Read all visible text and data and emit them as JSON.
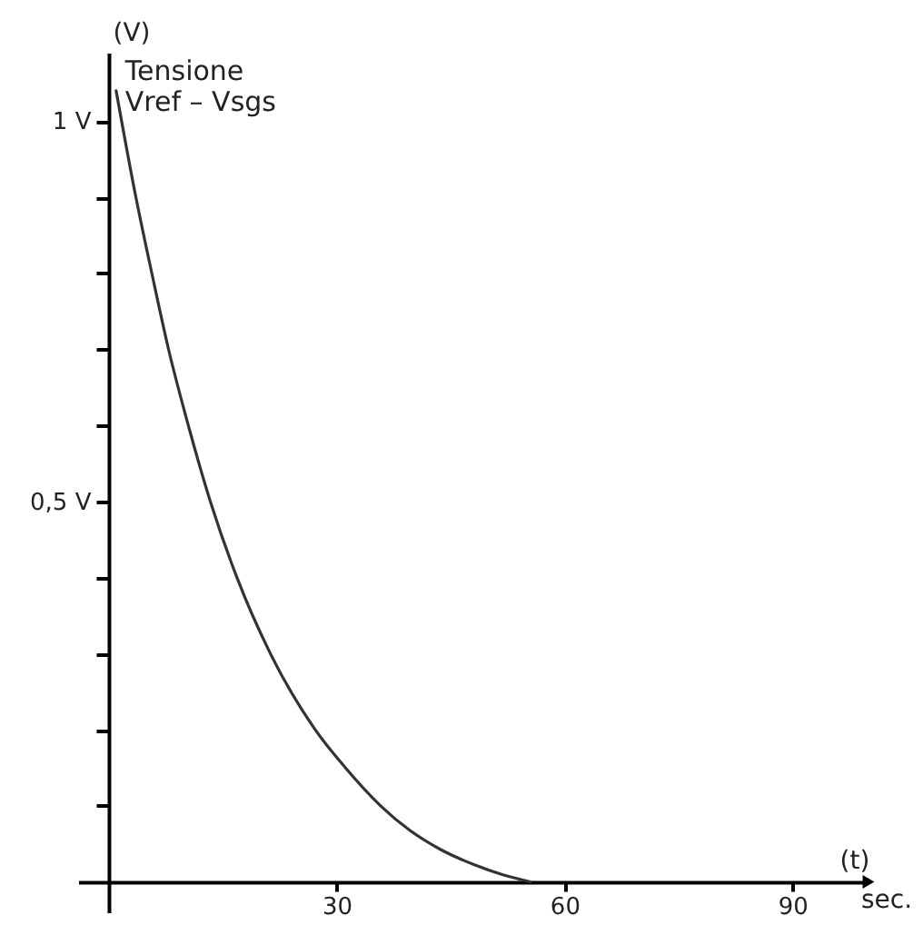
{
  "chart_data": {
    "type": "line",
    "xlabel": "(t)",
    "ylabel": "(V)",
    "annotations": [
      "sec."
    ],
    "xlim": [
      -4,
      100
    ],
    "ylim": [
      -0.04,
      1.09
    ],
    "xticks": [
      30,
      60,
      90
    ],
    "yticks": [
      {
        "value": 0.1,
        "label": null
      },
      {
        "value": 0.2,
        "label": null
      },
      {
        "value": 0.3,
        "label": null
      },
      {
        "value": 0.4,
        "label": null
      },
      {
        "value": 0.5,
        "label": "0,5 V"
      },
      {
        "value": 0.6,
        "label": null
      },
      {
        "value": 0.7,
        "label": null
      },
      {
        "value": 0.8,
        "label": null
      },
      {
        "value": 0.9,
        "label": null
      },
      {
        "value": 1,
        "label": "1 V"
      }
    ],
    "grid": false,
    "series": [
      {
        "name": "Tensione Vref – Vsgs",
        "color": "#333333",
        "x": [
          1,
          3.6,
          5.7,
          7.9,
          10.5,
          13.4,
          16.9,
          21.3,
          27.2,
          31,
          35.8,
          39.6,
          43.6,
          48,
          52,
          55.5
        ],
        "values": [
          1.04,
          0.9,
          0.8,
          0.7,
          0.6,
          0.5,
          0.4,
          0.3,
          0.2,
          0.152,
          0.1,
          0.068,
          0.043,
          0.023,
          0.009,
          0
        ]
      }
    ]
  }
}
